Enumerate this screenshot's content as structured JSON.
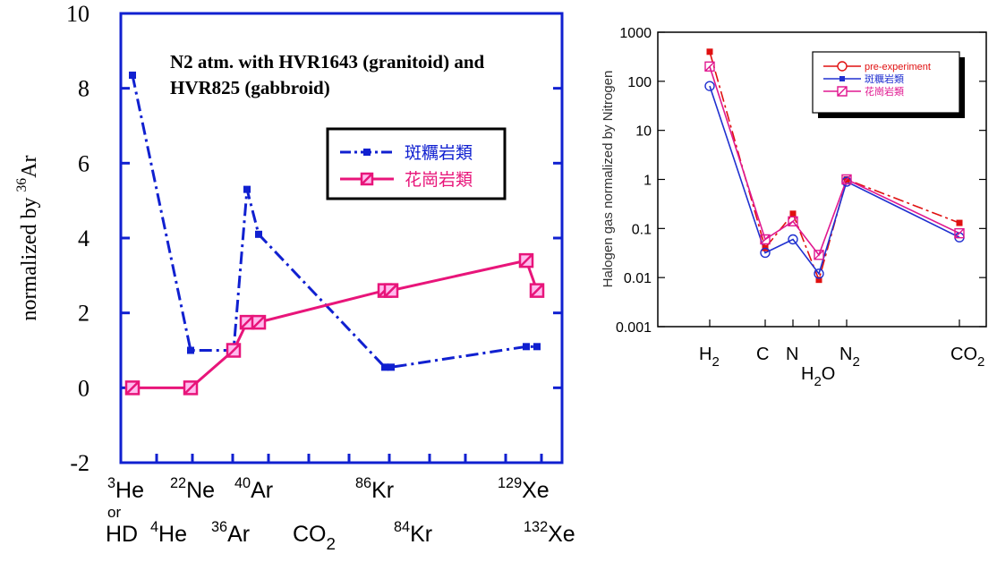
{
  "chart_data": [
    {
      "type": "line",
      "title": [
        "N2 atm. with HVR1643 (granitoid) and",
        "HVR825 (gabbroid)"
      ],
      "ylabel": [
        {
          "text": "normalized by "
        },
        {
          "sup": "36"
        },
        {
          "text": "Ar"
        }
      ],
      "ylim": [
        -2,
        10
      ],
      "yticks": [
        -2,
        0,
        2,
        4,
        6,
        8,
        10
      ],
      "x_labels": [
        [
          {
            "sup": "3"
          },
          {
            "text": "He"
          }
        ],
        [
          {
            "sup": "22"
          },
          {
            "text": "Ne"
          }
        ],
        [
          {
            "sup": "40"
          },
          {
            "text": "Ar"
          }
        ],
        [
          {
            "sup": "86"
          },
          {
            "text": "Kr"
          }
        ],
        [
          {
            "sup": "129"
          },
          {
            "text": "Xe"
          }
        ],
        [
          {
            "text": "or"
          }
        ],
        [
          {
            "text": "HD"
          }
        ],
        [
          {
            "sup": "4"
          },
          {
            "text": "He"
          }
        ],
        [
          {
            "sup": "36"
          },
          {
            "text": "Ar"
          }
        ],
        [
          {
            "text": "CO"
          },
          {
            "sub": "2"
          }
        ],
        [
          {
            "sup": "84"
          },
          {
            "text": "Kr"
          }
        ],
        [
          {
            "sup": "132"
          },
          {
            "text": "Xe"
          }
        ]
      ],
      "series": [
        {
          "name": "斑糲岩類",
          "color": "#1020d0",
          "values": [
            8.35,
            1.0,
            1.0,
            5.3,
            4.1,
            0.55,
            0.55,
            1.1,
            1.1
          ]
        },
        {
          "name": "花崗岩類",
          "color": "#e8157a",
          "values": [
            0,
            0,
            1.0,
            1.75,
            1.75,
            2.6,
            2.6,
            3.4,
            2.6
          ]
        }
      ]
    },
    {
      "type": "line",
      "log_scale": true,
      "ylabel": "Halogen gas normalized by Nitrogen",
      "ylim": [
        0.001,
        1000
      ],
      "yticks": [
        0.001,
        0.01,
        0.1,
        1,
        10,
        100,
        1000
      ],
      "categories": [
        [
          {
            "text": "H"
          },
          {
            "sub": "2"
          }
        ],
        [
          {
            "text": "C"
          }
        ],
        [
          {
            "text": "N"
          }
        ],
        [
          {
            "text": "H"
          },
          {
            "sub": "2"
          },
          {
            "text": "O"
          }
        ],
        [
          {
            "text": "N"
          },
          {
            "sub": "2"
          }
        ],
        [
          {
            "text": "CO"
          },
          {
            "sub": "2"
          }
        ]
      ],
      "series": [
        {
          "name": "pre-experiment",
          "color": "#e01010",
          "values": [
            400,
            0.04,
            0.2,
            0.009,
            1.0,
            0.13
          ]
        },
        {
          "name": "斑糲岩類",
          "color": "#2030d0",
          "values": [
            80,
            0.032,
            0.06,
            0.012,
            0.9,
            0.066
          ]
        },
        {
          "name": "花崗岩類",
          "color": "#e01890",
          "values": [
            200,
            0.06,
            0.14,
            0.029,
            1.0,
            0.08
          ]
        }
      ]
    }
  ]
}
